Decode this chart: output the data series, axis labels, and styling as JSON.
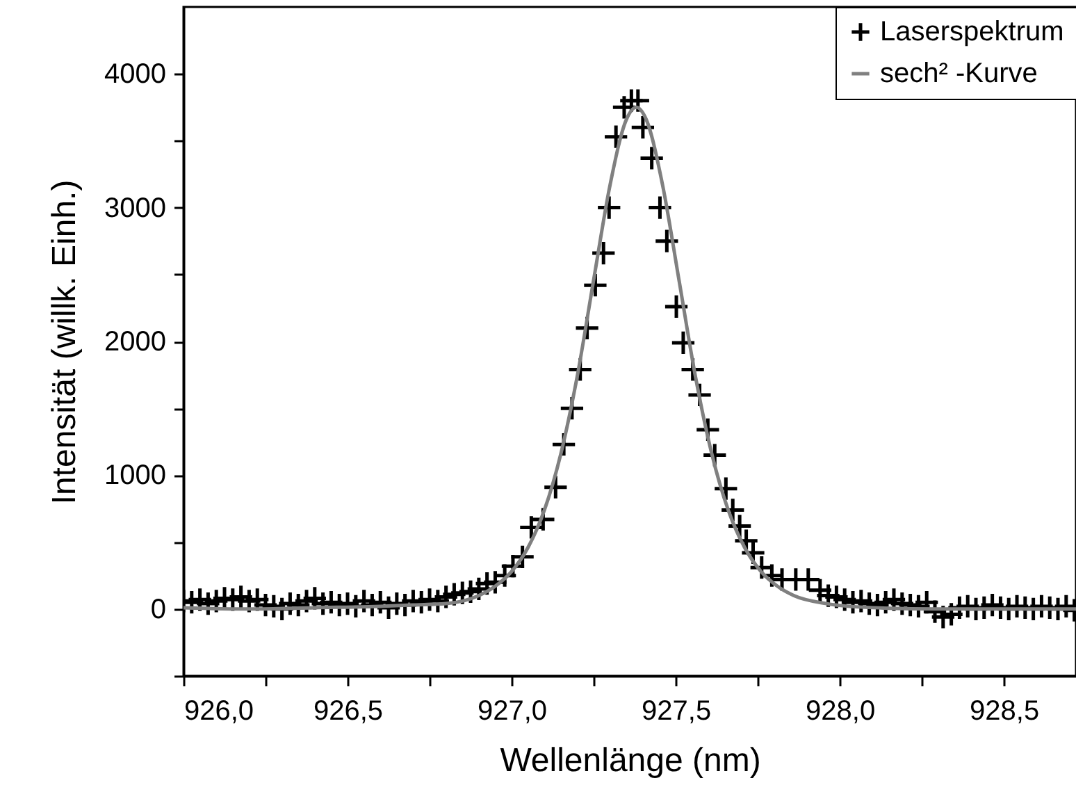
{
  "chart_data": {
    "type": "scatter",
    "xlabel": "Wellenlänge (nm)",
    "ylabel": "Intensität (willk. Einh.)",
    "xlim": [
      926.0,
      928.72
    ],
    "ylim": [
      -500,
      4500
    ],
    "xticks": [
      {
        "value": 926.0,
        "label": "926,0"
      },
      {
        "value": 926.25,
        "label": null
      },
      {
        "value": 926.5,
        "label": "926,5"
      },
      {
        "value": 926.75,
        "label": null
      },
      {
        "value": 927.0,
        "label": "927,0"
      },
      {
        "value": 927.25,
        "label": null
      },
      {
        "value": 927.5,
        "label": "927,5"
      },
      {
        "value": 927.75,
        "label": null
      },
      {
        "value": 928.0,
        "label": "928,0"
      },
      {
        "value": 928.25,
        "label": null
      },
      {
        "value": 928.5,
        "label": "928,5"
      }
    ],
    "yticks": [
      {
        "value": -500,
        "label": null
      },
      0,
      {
        "value": 500,
        "label": null
      },
      1000,
      {
        "value": 1500,
        "label": null
      },
      2000,
      {
        "value": 2500,
        "label": null
      },
      3000,
      {
        "value": 3500,
        "label": null
      },
      4000
    ],
    "legend": "top right",
    "grid": false,
    "series": [
      {
        "name": "Laserspektrum",
        "marker": "cross",
        "color": "#000000",
        "x": [
          926.0,
          926.025,
          926.05,
          926.075,
          926.1,
          926.125,
          926.15,
          926.175,
          926.2,
          926.225,
          926.25,
          926.275,
          926.3,
          926.325,
          926.35,
          926.375,
          926.4,
          926.425,
          926.45,
          926.475,
          926.5,
          926.525,
          926.55,
          926.575,
          926.6,
          926.625,
          926.65,
          926.675,
          926.7,
          926.725,
          926.75,
          926.775,
          926.8,
          926.825,
          926.85,
          926.875,
          926.9,
          926.925,
          926.95,
          926.979,
          927.004,
          927.033,
          927.06,
          927.096,
          927.134,
          927.159,
          927.184,
          927.209,
          927.23,
          927.255,
          927.28,
          927.297,
          927.318,
          927.343,
          927.365,
          927.385,
          927.4,
          927.427,
          927.452,
          927.473,
          927.502,
          927.523,
          927.552,
          927.573,
          927.598,
          927.619,
          927.653,
          927.674,
          927.695,
          927.715,
          927.736,
          927.762,
          927.793,
          927.824,
          927.866,
          927.904,
          927.94,
          927.965,
          927.99,
          928.015,
          928.04,
          928.065,
          928.09,
          928.115,
          928.14,
          928.165,
          928.19,
          928.215,
          928.24,
          928.265,
          928.29,
          928.315,
          928.34,
          928.365,
          928.39,
          928.415,
          928.44,
          928.465,
          928.49,
          928.515,
          928.54,
          928.565,
          928.59,
          928.615,
          928.64,
          928.665,
          928.69,
          928.715
        ],
        "values": [
          60,
          50,
          70,
          40,
          60,
          80,
          70,
          90,
          60,
          70,
          30,
          20,
          0,
          40,
          30,
          60,
          80,
          40,
          50,
          30,
          40,
          20,
          60,
          30,
          50,
          10,
          40,
          30,
          60,
          50,
          70,
          60,
          90,
          110,
          120,
          130,
          150,
          190,
          200,
          250,
          320,
          390,
          610,
          670,
          910,
          1230,
          1500,
          1790,
          2100,
          2420,
          2660,
          3000,
          3530,
          3750,
          3800,
          3800,
          3600,
          3370,
          3000,
          2750,
          2260,
          1990,
          1790,
          1600,
          1340,
          1150,
          900,
          740,
          620,
          510,
          420,
          310,
          250,
          220,
          220,
          220,
          140,
          100,
          90,
          70,
          50,
          60,
          40,
          30,
          50,
          70,
          40,
          30,
          20,
          50,
          -20,
          -60,
          -40,
          10,
          20,
          0,
          10,
          30,
          10,
          0,
          20,
          10,
          0,
          20,
          10,
          0,
          20,
          -10
        ]
      },
      {
        "name": "sech² -Kurve",
        "type": "line",
        "line_style": "solid",
        "color": "#808080",
        "x": [
          926.0,
          926.2,
          926.4,
          926.6,
          926.7,
          926.8,
          926.9,
          926.95,
          927.0,
          927.05,
          927.1,
          927.15,
          927.2,
          927.25,
          927.3,
          927.35,
          927.38,
          927.41,
          927.46,
          927.51,
          927.56,
          927.61,
          927.66,
          927.71,
          927.76,
          927.81,
          927.86,
          927.96,
          928.1,
          928.3,
          928.72
        ],
        "values": [
          10,
          0,
          10,
          20,
          30,
          40,
          100,
          170,
          280,
          460,
          740,
          1160,
          1740,
          2460,
          3170,
          3660,
          3750,
          3660,
          3170,
          2460,
          1740,
          1160,
          740,
          460,
          280,
          170,
          100,
          40,
          10,
          0,
          0
        ]
      }
    ]
  }
}
